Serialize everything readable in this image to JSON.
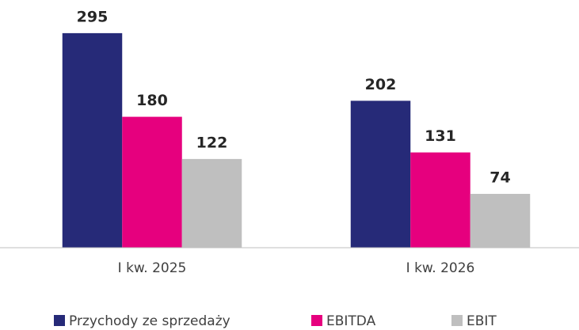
{
  "chart_data": {
    "type": "bar",
    "categories": [
      "I kw. 2025",
      "I kw. 2026"
    ],
    "series": [
      {
        "name": "Przychody ze sprzedaży",
        "color": "#262a78",
        "values": [
          295,
          202
        ]
      },
      {
        "name": "EBITDA",
        "color": "#e6007e",
        "values": [
          180,
          131
        ]
      },
      {
        "name": "EBIT",
        "color": "#bfbfbf",
        "values": [
          122,
          74
        ]
      }
    ],
    "ylim": [
      0,
      300
    ]
  }
}
